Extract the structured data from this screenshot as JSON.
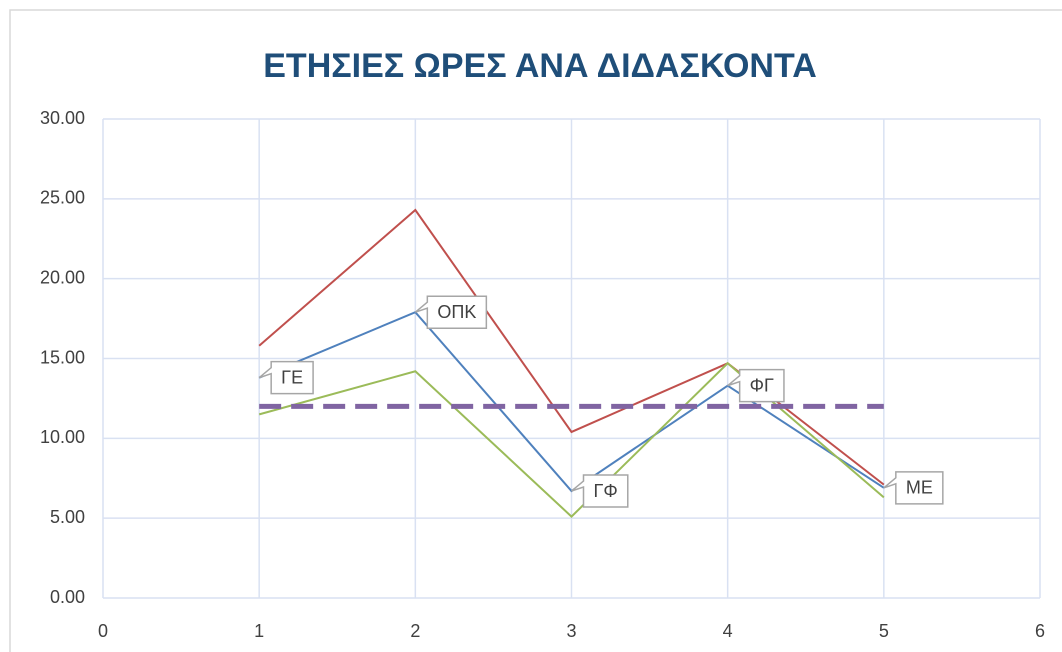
{
  "chart_data": {
    "type": "line",
    "title": "ΕΤΗΣΙΕΣ ΩΡΕΣ ΑΝΑ ΔΙΔΑΣΚΟΝΤΑ",
    "x": [
      1,
      2,
      3,
      4,
      5
    ],
    "series": [
      {
        "color": "#c0504d",
        "values": [
          15.8,
          24.3,
          10.4,
          14.7,
          7.1
        ]
      },
      {
        "color": "#4f81bd",
        "values": [
          13.8,
          17.9,
          6.7,
          13.3,
          6.9
        ],
        "point_labels": [
          "ΓΕ",
          "ΟΠΚ",
          "ΓΦ",
          "ΦΓ",
          "ΜΕ"
        ]
      },
      {
        "color": "#9bbb59",
        "values": [
          11.5,
          14.2,
          5.1,
          14.7,
          6.3
        ]
      },
      {
        "color": "#8064a2",
        "values": [
          12,
          12,
          12,
          12,
          12
        ],
        "dashed": true
      }
    ],
    "xlim": [
      0,
      6
    ],
    "xticks": [
      0,
      1,
      2,
      3,
      4,
      5,
      6
    ],
    "ylim": [
      0,
      30
    ],
    "yticks": [
      {
        "value": 0,
        "label": "0.00"
      },
      {
        "value": 5,
        "label": "5.00"
      },
      {
        "value": 10,
        "label": "10.00"
      },
      {
        "value": 15,
        "label": "15.00"
      },
      {
        "value": 20,
        "label": "20.00"
      },
      {
        "value": 25,
        "label": "25.00"
      },
      {
        "value": 30,
        "label": "30.00"
      }
    ],
    "grid": true
  }
}
